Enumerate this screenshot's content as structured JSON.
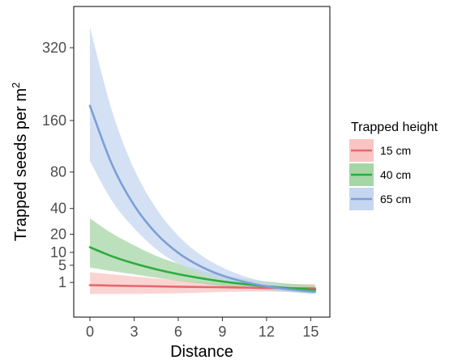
{
  "chart_data": {
    "type": "line",
    "xlabel": "Distance",
    "ylabel_main": "Trapped seeds per m",
    "ylabel_sup": "2",
    "x_ticks": [
      0,
      3,
      6,
      9,
      12,
      15
    ],
    "x_tick_labels": [
      "0",
      "3",
      "6",
      "9",
      "12",
      "15"
    ],
    "y_ticks": [
      1,
      5,
      10,
      20,
      40,
      80,
      160,
      320
    ],
    "y_tick_labels": [
      "1",
      "5",
      "10",
      "20",
      "40",
      "80",
      "160",
      "320"
    ],
    "y_scale": "sqrt",
    "xlim": [
      -1.1,
      16.3
    ],
    "ylim": [
      -2.23,
      435
    ],
    "grid": false,
    "legend": {
      "title": "Trapped height",
      "placement": "right",
      "entries": [
        "15 cm",
        "40 cm",
        "65 cm"
      ]
    },
    "x": [
      0,
      1.5,
      3,
      4.5,
      6,
      7.5,
      9,
      10.5,
      12,
      13.5,
      15,
      15.3
    ],
    "series": [
      {
        "name": "15 cm",
        "color": "#e8676c",
        "band_color": "#f8c5c3",
        "values": [
          0.65,
          0.6,
          0.56,
          0.52,
          0.48,
          0.45,
          0.43,
          0.4,
          0.37,
          0.35,
          0.33,
          0.33
        ],
        "lower": [
          0.03,
          0.03,
          0.03,
          0.04,
          0.05,
          0.07,
          0.1,
          0.12,
          0.12,
          0.1,
          0.08,
          0.08
        ],
        "upper": [
          3.0,
          2.5,
          2.05,
          1.65,
          1.35,
          1.12,
          0.94,
          0.84,
          0.78,
          0.77,
          0.78,
          0.78
        ]
      },
      {
        "name": "40 cm",
        "color": "#2eab3e",
        "band_color": "#a6d6a6",
        "values": [
          12.5,
          8.3,
          5.6,
          3.8,
          2.55,
          1.72,
          1.15,
          0.78,
          0.52,
          0.36,
          0.24,
          0.22
        ],
        "lower": [
          4.3,
          3.3,
          2.5,
          1.8,
          1.25,
          0.86,
          0.56,
          0.35,
          0.2,
          0.1,
          0.05,
          0.05
        ],
        "upper": [
          31.5,
          20.5,
          13.5,
          8.5,
          5.5,
          3.5,
          2.3,
          1.6,
          1.15,
          0.85,
          0.66,
          0.63
        ]
      },
      {
        "name": "65 cm",
        "color": "#7b9fd6",
        "band_color": "#c6d6f0",
        "values": [
          188,
          90,
          43,
          20.5,
          9.8,
          4.7,
          2.25,
          1.08,
          0.52,
          0.25,
          0.12,
          0.11
        ],
        "lower": [
          95,
          47,
          24,
          11.5,
          5.5,
          2.6,
          1.2,
          0.55,
          0.24,
          0.1,
          0.03,
          0.03
        ],
        "upper": [
          375,
          178,
          84,
          40,
          19,
          9,
          4.3,
          2.1,
          1.05,
          0.55,
          0.32,
          0.3
        ]
      }
    ]
  }
}
